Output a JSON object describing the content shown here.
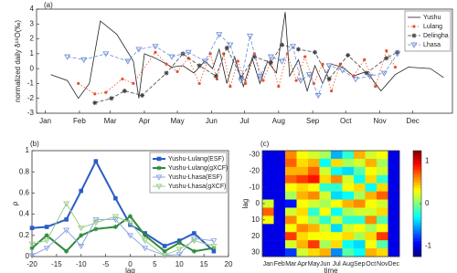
{
  "chart_data": [
    {
      "type": "line",
      "panel_label": "(a)",
      "ylabel": "normalized daily δ¹⁸O(‰)",
      "xlim": [
        -8,
        370
      ],
      "ylim": [
        -3,
        4
      ],
      "yticks": [
        -3,
        -2,
        -1,
        0,
        1,
        2,
        3,
        4
      ],
      "xticks": [
        {
          "value": 0,
          "label": "Jan"
        },
        {
          "value": 31,
          "label": "Feb"
        },
        {
          "value": 59,
          "label": "Mar"
        },
        {
          "value": 90,
          "label": "Apr"
        },
        {
          "value": 120,
          "label": "May"
        },
        {
          "value": 151,
          "label": "Jun"
        },
        {
          "value": 181,
          "label": "Jul"
        },
        {
          "value": 212,
          "label": "Aug"
        },
        {
          "value": 243,
          "label": "Sep"
        },
        {
          "value": 273,
          "label": "Oct"
        },
        {
          "value": 304,
          "label": "Nov"
        },
        {
          "value": 334,
          "label": "Dec"
        }
      ],
      "legend": "upper right",
      "series": [
        {
          "name": "Yushu",
          "color": "#222222",
          "marker": "none",
          "linestyle": "solid",
          "x": [
            5,
            20,
            30,
            40,
            50,
            65,
            80,
            85,
            90,
            100,
            115,
            125,
            135,
            145,
            152,
            158,
            165,
            172,
            180,
            188,
            195,
            202,
            210,
            218,
            222,
            230,
            238,
            245,
            252,
            260,
            270,
            280,
            292,
            305,
            318,
            330,
            350,
            362
          ],
          "values": [
            -0.4,
            -0.8,
            -2.0,
            -1.0,
            3.2,
            2.3,
            0.5,
            -2.0,
            1.0,
            0.7,
            0.1,
            0.2,
            -0.3,
            0.5,
            0.0,
            1.3,
            -1.0,
            0.8,
            -1.2,
            0.7,
            -1.0,
            0.5,
            -0.3,
            3.8,
            -0.5,
            0.6,
            -1.5,
            0.2,
            -1.0,
            0.3,
            0.1,
            -0.5,
            -0.2,
            -1.5,
            -0.4,
            0.1,
            0.0,
            -0.6
          ]
        },
        {
          "name": "Lulang",
          "color": "#e8502a",
          "marker": "dot",
          "linestyle": "dotted",
          "x": [
            30,
            45,
            55,
            70,
            80,
            100,
            110,
            120,
            130,
            140,
            150,
            156,
            162,
            168,
            175,
            182,
            190,
            198,
            205,
            212,
            220,
            228,
            236,
            244,
            252,
            260,
            268,
            280,
            290,
            300,
            310,
            318
          ],
          "values": [
            -1.0,
            -1.7,
            -1.6,
            -0.7,
            -1.0,
            1.1,
            0.3,
            -0.2,
            0.7,
            -1.0,
            1.0,
            -0.7,
            1.0,
            -1.2,
            0.5,
            -1.0,
            1.0,
            -0.8,
            0.5,
            -1.2,
            1.0,
            -0.8,
            0.8,
            -1.0,
            0.3,
            -1.5,
            0.3,
            -0.5,
            0.6,
            -1.2,
            1.2,
            0.1
          ]
        },
        {
          "name": "Delingha",
          "color": "#444444",
          "marker": "star",
          "linestyle": "dashed",
          "x": [
            45,
            60,
            72,
            88,
            110,
            125,
            140,
            155,
            165,
            178,
            190,
            205,
            215,
            230,
            245,
            258,
            275,
            292,
            310,
            320
          ],
          "values": [
            -2.3,
            -2.0,
            -1.5,
            -1.8,
            -0.3,
            1.0,
            0.2,
            -0.5,
            1.4,
            -0.6,
            0.8,
            0.4,
            1.6,
            1.3,
            1.1,
            -0.7,
            0.9,
            -0.3,
            0.7,
            1.1
          ]
        },
        {
          "name": "Lhasa",
          "color": "#6f8fd8",
          "marker": "tri",
          "linestyle": "dashed",
          "x": [
            20,
            35,
            55,
            75,
            85,
            100,
            115,
            130,
            145,
            158,
            168,
            178,
            186,
            195,
            205,
            215,
            225,
            232,
            240,
            248,
            258,
            270,
            282,
            295,
            308,
            320
          ],
          "values": [
            0.8,
            0.6,
            1.0,
            0.5,
            1.3,
            1.5,
            0.8,
            1.1,
            0.5,
            2.3,
            1.6,
            -0.8,
            2.2,
            -0.5,
            0.8,
            0.5,
            1.5,
            -0.8,
            -0.4,
            -1.8,
            0.2,
            -0.1,
            -0.7,
            -0.5,
            -0.3,
            1.0
          ]
        }
      ]
    },
    {
      "type": "line",
      "panel_label": "(b)",
      "xlabel": "lag",
      "ylabel": "ρ",
      "xlim": [
        -20,
        20
      ],
      "xticks": [
        -20,
        -15,
        -10,
        -5,
        0,
        5,
        10,
        15,
        20
      ],
      "ylim": [
        0,
        1
      ],
      "yticks": [
        0,
        0.2,
        0.4,
        0.6,
        0.8,
        1
      ],
      "legend": "upper right",
      "series": [
        {
          "name": "Yushu-Lulang(ESF)",
          "color": "#2a5cc8",
          "marker": "square",
          "linestyle": "solid",
          "width": 2,
          "x": [
            -20,
            -17,
            -13,
            -10,
            -7,
            -3,
            0,
            3,
            7,
            10,
            13,
            17
          ],
          "values": [
            0.27,
            0.28,
            0.35,
            0.62,
            0.9,
            0.55,
            0.3,
            0.22,
            0.1,
            0.15,
            0.22,
            0.05
          ]
        },
        {
          "name": "Yushu-Lulang(gXCF)",
          "color": "#2e8b3a",
          "marker": "star",
          "linestyle": "solid",
          "width": 2,
          "x": [
            -20,
            -17,
            -13,
            -10,
            -7,
            -3,
            0,
            3,
            7,
            10,
            13,
            17
          ],
          "values": [
            0.08,
            0.2,
            0.05,
            0.2,
            0.26,
            0.28,
            0.38,
            0.2,
            0.05,
            0.13,
            0.05,
            0.08
          ]
        },
        {
          "name": "Yushu-Lhasa(ESF)",
          "color": "#8fa6e6",
          "marker": "tri",
          "linestyle": "solid",
          "width": 1,
          "x": [
            -20,
            -17,
            -13,
            -10,
            -7,
            -3,
            0,
            3,
            7,
            10,
            13,
            17
          ],
          "values": [
            0.01,
            0.08,
            0.25,
            0.1,
            0.35,
            0.35,
            0.2,
            0.08,
            0.01,
            0.02,
            0.17,
            0.15
          ]
        },
        {
          "name": "Yushu-Lhasa(gXCF)",
          "color": "#9ccc8a",
          "marker": "tri",
          "linestyle": "solid",
          "width": 1,
          "x": [
            -20,
            -17,
            -13,
            -10,
            -7,
            -3,
            0,
            3,
            7,
            10,
            13,
            17
          ],
          "values": [
            0.12,
            0.15,
            0.5,
            0.27,
            0.32,
            0.38,
            0.32,
            0.15,
            0.01,
            0.07,
            0.15,
            0.1
          ]
        }
      ]
    },
    {
      "type": "heatmap",
      "panel_label": "(c)",
      "xlabel": "time",
      "ylabel": "lag",
      "colormap": "jet",
      "categories": [
        "Jan",
        "Feb",
        "Mar",
        "Apr",
        "May",
        "Jun",
        "Jul",
        "Aug",
        "Sep",
        "Oct",
        "Nov",
        "Dec"
      ],
      "y": [
        -30,
        -25,
        -20,
        -15,
        -10,
        -5,
        0,
        5,
        10,
        15,
        20,
        25,
        30
      ],
      "ylim": [
        -32.5,
        32.5
      ],
      "yticks": [
        -30,
        -20,
        -10,
        0,
        10,
        20,
        30
      ],
      "zlim": [
        -1.25,
        1.25
      ],
      "zticks": [
        -1,
        0,
        1
      ],
      "values": [
        [
          -1,
          -1,
          -1,
          -1,
          -1,
          -1,
          0.2,
          0.7,
          0.3,
          -1,
          -1,
          -1,
          -1
        ],
        [
          -1,
          -1,
          -1,
          -1,
          -1,
          -1,
          -1,
          -1,
          -1,
          -1,
          -1,
          -1,
          -1
        ],
        [
          0.6,
          0.7,
          0.5,
          0.7,
          0.3,
          0.1,
          -0.9,
          0.2,
          0.6,
          0.3,
          0.8,
          0.2,
          -0.8
        ],
        [
          0.3,
          0.4,
          0.5,
          0.8,
          0.4,
          0.5,
          0.3,
          0.4,
          0.3,
          0.6,
          0.4,
          0.5,
          0.2
        ],
        [
          0.2,
          0.5,
          0.7,
          0.9,
          0.3,
          0.6,
          0.2,
          -0.2,
          0.1,
          0.5,
          0.3,
          0.8,
          0.4
        ],
        [
          0.1,
          -0.3,
          0.2,
          0.4,
          -0.2,
          0.2,
          0.1,
          0.3,
          -0.2,
          0.2,
          0.3,
          0.1,
          0.5
        ],
        [
          -0.5,
          0.4,
          -0.3,
          0.6,
          -0.2,
          -0.4,
          0.3,
          -0.3,
          0.2,
          -0.4,
          0.3,
          0.4,
          -0.6
        ],
        [
          -0.2,
          0.1,
          -0.4,
          0.2,
          0.3,
          -0.3,
          0.5,
          0.1,
          -0.2,
          0.2,
          0.4,
          -0.3,
          -0.1
        ],
        [
          0.5,
          0.2,
          -0.1,
          -0.3,
          0.4,
          0.1,
          0.6,
          0.2,
          -0.2,
          0.3,
          0.1,
          -0.4,
          -0.3
        ],
        [
          0.2,
          0.5,
          0.3,
          0.4,
          -0.3,
          0.5,
          0.3,
          0.2,
          0.6,
          0.1,
          0.4,
          0.3,
          0.5
        ],
        [
          0.3,
          0.1,
          0.2,
          -0.2,
          0.4,
          0.7,
          0.2,
          0.4,
          -0.1,
          0.3,
          0.8,
          -0.1,
          0.4
        ],
        [
          -1,
          -1,
          -1,
          -1,
          -1,
          -1,
          -1,
          -1,
          -1,
          -1,
          -1,
          -1,
          -1
        ]
      ]
    }
  ]
}
